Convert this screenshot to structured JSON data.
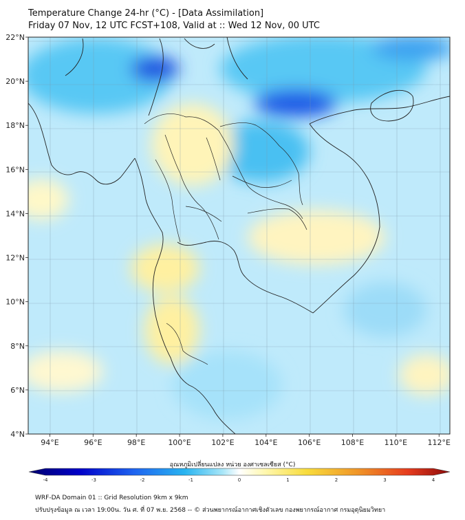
{
  "header": {
    "title": "Temperature Change 24-hr (°C) - [Data Assimilation]",
    "subtitle": "Friday 07 Nov, 12 UTC FCST+108, Valid at :: Wed 12 Nov, 00 UTC"
  },
  "axes": {
    "lat_labels": [
      "22°N",
      "20°N",
      "18°N",
      "16°N",
      "14°N",
      "12°N",
      "10°N",
      "8°N",
      "6°N",
      "4°N"
    ],
    "lon_labels": [
      "94°E",
      "96°E",
      "98°E",
      "100°E",
      "102°E",
      "104°E",
      "106°E",
      "108°E",
      "110°E",
      "112°E"
    ],
    "lat_range": [
      4,
      22
    ],
    "lon_range": [
      93,
      112.5
    ]
  },
  "colorbar": {
    "label": "อุณหภูมิเปลี่ยนแปลง หน่วย องศาเซลเซียส (°C)",
    "ticks": [
      "-4",
      "-3",
      "-2",
      "-1",
      "0",
      "1",
      "2",
      "3",
      "4"
    ],
    "range": [
      -4,
      4
    ],
    "colors": [
      "#00006e",
      "#0000c8",
      "#1e64f0",
      "#28b4f0",
      "#a8e6f8",
      "#ffffff",
      "#fff8b0",
      "#f8dc3c",
      "#f09628",
      "#e63c1e",
      "#8c0a0a"
    ]
  },
  "footer": {
    "line1": "WRF-DA Domain 01 :: Grid Resolution 9km x 9km",
    "line2": "ปรับปรุงข้อมูล ณ เวลา 19:00น. วัน ศ. ที่ 07 พ.ย. 2568 -- © ส่วนพยากรณ์อากาศเชิงตัวเลข กองพยากรณ์อากาศ กรมอุตุนิยมวิทยา"
  }
}
